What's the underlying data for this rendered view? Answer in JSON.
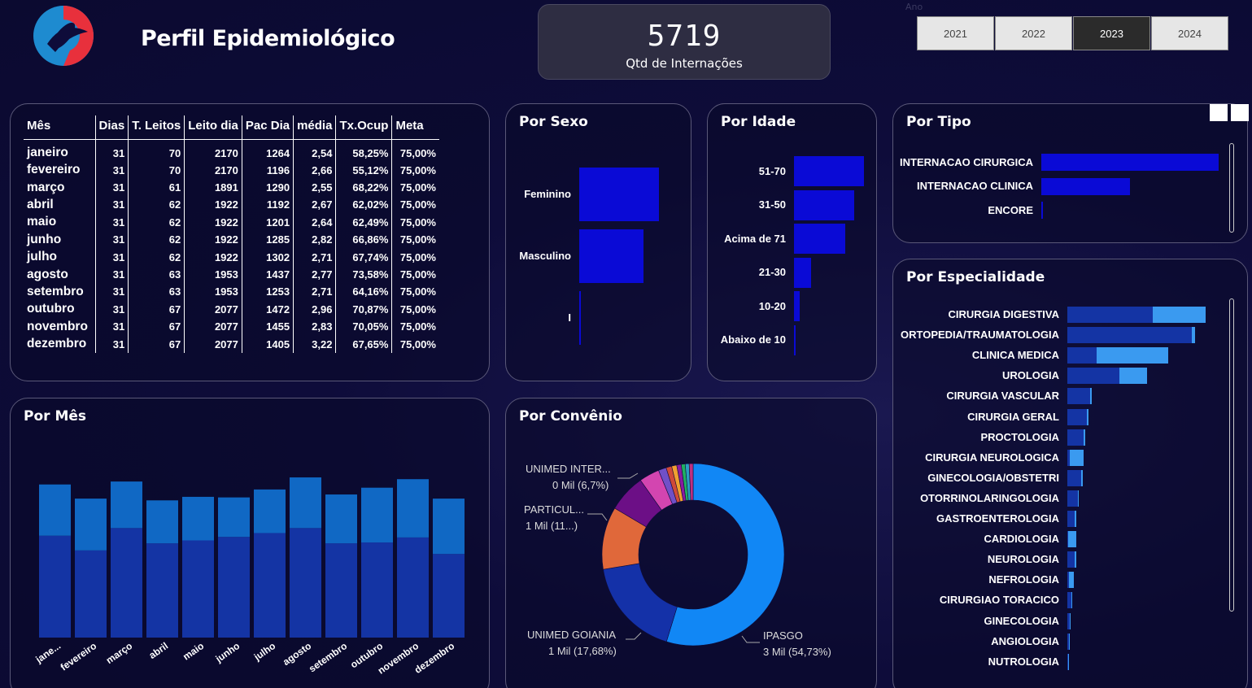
{
  "header": {
    "title": "Perfil Epidemiológico",
    "kpi_value": "5719",
    "kpi_label": "Qtd de Internações",
    "year_label": "Ano",
    "years": [
      "2021",
      "2022",
      "2023",
      "2024"
    ],
    "selected_year": "2023",
    "logo_icon": "hospital-logo-icon"
  },
  "table": {
    "headers": [
      "Mês",
      "Dias",
      "T. Leitos",
      "Leito dia",
      "Pac Dia",
      "média",
      "Tx.Ocup",
      "Meta"
    ],
    "rows": [
      [
        "janeiro",
        "31",
        "70",
        "2170",
        "1264",
        "2,54",
        "58,25%",
        "75,00%"
      ],
      [
        "fevereiro",
        "31",
        "70",
        "2170",
        "1196",
        "2,66",
        "55,12%",
        "75,00%"
      ],
      [
        "março",
        "31",
        "61",
        "1891",
        "1290",
        "2,55",
        "68,22%",
        "75,00%"
      ],
      [
        "abril",
        "31",
        "62",
        "1922",
        "1192",
        "2,67",
        "62,02%",
        "75,00%"
      ],
      [
        "maio",
        "31",
        "62",
        "1922",
        "1201",
        "2,64",
        "62,49%",
        "75,00%"
      ],
      [
        "junho",
        "31",
        "62",
        "1922",
        "1285",
        "2,82",
        "66,86%",
        "75,00%"
      ],
      [
        "julho",
        "31",
        "62",
        "1922",
        "1302",
        "2,71",
        "67,74%",
        "75,00%"
      ],
      [
        "agosto",
        "31",
        "63",
        "1953",
        "1437",
        "2,77",
        "73,58%",
        "75,00%"
      ],
      [
        "setembro",
        "31",
        "63",
        "1953",
        "1253",
        "2,71",
        "64,16%",
        "75,00%"
      ],
      [
        "outubro",
        "31",
        "67",
        "2077",
        "1472",
        "2,96",
        "70,87%",
        "75,00%"
      ],
      [
        "novembro",
        "31",
        "67",
        "2077",
        "1455",
        "2,83",
        "70,05%",
        "75,00%"
      ],
      [
        "dezembro",
        "31",
        "67",
        "2077",
        "1405",
        "3,22",
        "67,65%",
        "75,00%"
      ]
    ]
  },
  "panels": {
    "sexo": "Por Sexo",
    "idade": "Por Idade",
    "tipo": "Por Tipo",
    "mes": "Por Mês",
    "convenio": "Por Convênio",
    "especialidade": "Por Especialidade"
  },
  "colors": {
    "bar_blue": "#0a0ad6",
    "stack_dark": "#1434a4",
    "stack_light": "#1068c4",
    "esp_light": "#3a9af0",
    "donut_main": "#1187f5"
  },
  "chart_data": [
    {
      "id": "sexo",
      "type": "bar",
      "orientation": "horizontal",
      "categories": [
        "Feminino",
        "Masculino",
        "I"
      ],
      "values": [
        2950,
        2380,
        20
      ]
    },
    {
      "id": "idade",
      "type": "bar",
      "orientation": "horizontal",
      "categories": [
        "51-70",
        "31-50",
        "Acima de 71",
        "21-30",
        "10-20",
        "Abaixo de 10"
      ],
      "values": [
        1850,
        1590,
        1350,
        450,
        150,
        45
      ]
    },
    {
      "id": "tipo",
      "type": "bar",
      "orientation": "horizontal",
      "categories": [
        "INTERNACAO CIRURGICA",
        "INTERNACAO CLINICA",
        "ENCORE"
      ],
      "values": [
        3600,
        1800,
        20
      ]
    },
    {
      "id": "mes",
      "type": "bar",
      "stacked": true,
      "categories": [
        "jane...",
        "fevereiro",
        "março",
        "abril",
        "maio",
        "junho",
        "julho",
        "agosto",
        "setembro",
        "outubro",
        "novembro",
        "dezembro"
      ],
      "series": [
        {
          "values": [
            346,
            296,
            372,
            320,
            330,
            342,
            355,
            372,
            320,
            323,
            340,
            284
          ]
        },
        {
          "values": [
            174,
            176,
            158,
            146,
            148,
            134,
            148,
            172,
            166,
            186,
            198,
            188
          ]
        }
      ],
      "ylim": [
        0,
        580
      ]
    },
    {
      "id": "convenio",
      "type": "pie",
      "donut": true,
      "slices": [
        {
          "label": "IPASGO",
          "value": 54.73,
          "label_value": "3 Mil (54,73%)",
          "color": "#1187f5"
        },
        {
          "label": "UNIMED GOIANIA",
          "value": 17.68,
          "label_value": "1 Mil (17,68%)",
          "color": "#1431a8"
        },
        {
          "label": "PARTICUL...",
          "value": 11.1,
          "label_value": "1 Mil (11...)",
          "color": "#e0683a"
        },
        {
          "label": "UNIMED INTER...",
          "value": 6.7,
          "label_value": "0 Mil (6,7%)",
          "color": "#6c0f86"
        },
        {
          "label": "",
          "value": 3.6,
          "color": "#d345b0"
        },
        {
          "label": "",
          "value": 1.4,
          "color": "#7050c8"
        },
        {
          "label": "",
          "value": 1.0,
          "color": "#d04a38"
        },
        {
          "label": "",
          "value": 0.9,
          "color": "#f0a030"
        },
        {
          "label": "",
          "value": 0.8,
          "color": "#8a1aa0"
        },
        {
          "label": "",
          "value": 0.7,
          "color": "#20b060"
        },
        {
          "label": "",
          "value": 0.7,
          "color": "#2aa0c0"
        },
        {
          "label": "",
          "value": 0.69,
          "color": "#c03080"
        }
      ]
    },
    {
      "id": "especialidade",
      "type": "bar",
      "orientation": "horizontal",
      "stacked": true,
      "categories": [
        "CIRURGIA DIGESTIVA",
        "ORTOPEDIA/TRAUMATOLOGIA",
        "CLINICA MEDICA",
        "UROLOGIA",
        "CIRURGIA VASCULAR",
        "CIRURGIA GERAL",
        "PROCTOLOGIA",
        "CIRURGIA NEUROLOGICA",
        "GINECOLOGIA/OBSTETRI",
        "OTORRINOLARINGOLOGIA",
        "GASTROENTEROLOGIA",
        "CARDIOLOGIA",
        "NEUROLOGIA",
        "NEFROLOGIA",
        "CIRURGIAO TORACICO",
        "GINECOLOGIA",
        "ANGIOLOGIA",
        "NUTROLOGIA"
      ],
      "series": [
        {
          "values": [
            1050,
            1530,
            360,
            640,
            280,
            240,
            200,
            30,
            170,
            130,
            90,
            10,
            90,
            20,
            50,
            25,
            15,
            12
          ]
        },
        {
          "values": [
            650,
            40,
            880,
            340,
            20,
            20,
            20,
            170,
            20,
            10,
            20,
            100,
            15,
            60,
            10,
            8,
            5,
            4
          ]
        }
      ]
    }
  ]
}
